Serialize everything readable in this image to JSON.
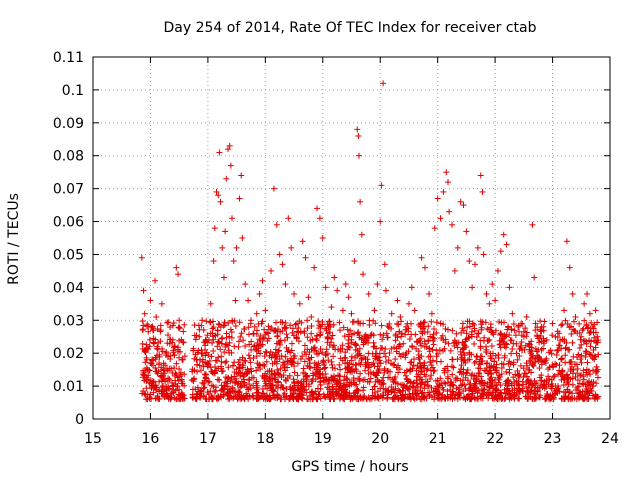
{
  "chart_data": {
    "type": "scatter",
    "title": "Day 254 of 2014, Rate Of TEC Index for receiver ctab",
    "xlabel": "GPS time / hours",
    "ylabel": "ROTI / TECUs",
    "xlim": [
      15,
      24
    ],
    "ylim": [
      0,
      0.11
    ],
    "x_ticks": [
      "15",
      "16",
      "17",
      "18",
      "19",
      "20",
      "21",
      "22",
      "23",
      "24"
    ],
    "y_ticks": [
      "0",
      "0.01",
      "0.02",
      "0.03",
      "0.04",
      "0.05",
      "0.06",
      "0.07",
      "0.08",
      "0.09",
      "0.1",
      "0.11"
    ],
    "grid": true,
    "marker": "+",
    "color": "#e00000",
    "series": [
      {
        "name": "ROTI",
        "points": [
          [
            15.85,
            0.049
          ],
          [
            15.88,
            0.039
          ],
          [
            15.9,
            0.032
          ],
          [
            15.92,
            0.021
          ],
          [
            15.95,
            0.015
          ],
          [
            15.98,
            0.011
          ],
          [
            16.0,
            0.036
          ],
          [
            16.02,
            0.028
          ],
          [
            16.05,
            0.018
          ],
          [
            16.08,
            0.042
          ],
          [
            16.1,
            0.031
          ],
          [
            16.12,
            0.022
          ],
          [
            16.15,
            0.017
          ],
          [
            16.18,
            0.027
          ],
          [
            16.2,
            0.035
          ],
          [
            16.22,
            0.013
          ],
          [
            16.25,
            0.009
          ],
          [
            16.28,
            0.02
          ],
          [
            16.38,
            0.014
          ],
          [
            16.42,
            0.022
          ],
          [
            16.45,
            0.046
          ],
          [
            16.48,
            0.044
          ],
          [
            16.5,
            0.03
          ],
          [
            16.55,
            0.018
          ],
          [
            16.75,
            0.012
          ],
          [
            16.8,
            0.018
          ],
          [
            16.85,
            0.025
          ],
          [
            16.9,
            0.03
          ],
          [
            16.95,
            0.021
          ],
          [
            17.0,
            0.016
          ],
          [
            17.02,
            0.024
          ],
          [
            17.05,
            0.035
          ],
          [
            17.08,
            0.026
          ],
          [
            17.1,
            0.048
          ],
          [
            17.12,
            0.058
          ],
          [
            17.15,
            0.069
          ],
          [
            17.18,
            0.068
          ],
          [
            17.2,
            0.081
          ],
          [
            17.22,
            0.066
          ],
          [
            17.25,
            0.052
          ],
          [
            17.28,
            0.043
          ],
          [
            17.3,
            0.057
          ],
          [
            17.32,
            0.073
          ],
          [
            17.35,
            0.082
          ],
          [
            17.38,
            0.083
          ],
          [
            17.4,
            0.077
          ],
          [
            17.42,
            0.061
          ],
          [
            17.45,
            0.048
          ],
          [
            17.48,
            0.036
          ],
          [
            17.5,
            0.052
          ],
          [
            17.55,
            0.067
          ],
          [
            17.58,
            0.074
          ],
          [
            17.6,
            0.055
          ],
          [
            17.65,
            0.041
          ],
          [
            17.7,
            0.036
          ],
          [
            17.75,
            0.03
          ],
          [
            17.8,
            0.022
          ],
          [
            17.85,
            0.032
          ],
          [
            17.9,
            0.038
          ],
          [
            17.95,
            0.042
          ],
          [
            18.0,
            0.033
          ],
          [
            18.05,
            0.026
          ],
          [
            18.1,
            0.045
          ],
          [
            18.15,
            0.07
          ],
          [
            18.2,
            0.059
          ],
          [
            18.25,
            0.05
          ],
          [
            18.3,
            0.047
          ],
          [
            18.35,
            0.041
          ],
          [
            18.4,
            0.061
          ],
          [
            18.45,
            0.052
          ],
          [
            18.5,
            0.038
          ],
          [
            18.55,
            0.029
          ],
          [
            18.6,
            0.035
          ],
          [
            18.65,
            0.054
          ],
          [
            18.7,
            0.049
          ],
          [
            18.75,
            0.037
          ],
          [
            18.8,
            0.031
          ],
          [
            18.85,
            0.046
          ],
          [
            18.9,
            0.064
          ],
          [
            18.95,
            0.061
          ],
          [
            19.0,
            0.055
          ],
          [
            19.05,
            0.04
          ],
          [
            19.1,
            0.028
          ],
          [
            19.15,
            0.034
          ],
          [
            19.2,
            0.043
          ],
          [
            19.25,
            0.039
          ],
          [
            19.3,
            0.027
          ],
          [
            19.35,
            0.033
          ],
          [
            19.4,
            0.041
          ],
          [
            19.45,
            0.037
          ],
          [
            19.5,
            0.032
          ],
          [
            19.55,
            0.048
          ],
          [
            19.6,
            0.088
          ],
          [
            19.62,
            0.086
          ],
          [
            19.63,
            0.08
          ],
          [
            19.65,
            0.066
          ],
          [
            19.68,
            0.056
          ],
          [
            19.7,
            0.044
          ],
          [
            19.8,
            0.038
          ],
          [
            19.9,
            0.033
          ],
          [
            19.95,
            0.041
          ],
          [
            20.0,
            0.06
          ],
          [
            20.02,
            0.071
          ],
          [
            20.05,
            0.102
          ],
          [
            20.08,
            0.047
          ],
          [
            20.1,
            0.039
          ],
          [
            20.2,
            0.032
          ],
          [
            20.3,
            0.036
          ],
          [
            20.35,
            0.031
          ],
          [
            20.45,
            0.028
          ],
          [
            20.5,
            0.035
          ],
          [
            20.55,
            0.04
          ],
          [
            20.6,
            0.033
          ],
          [
            20.7,
            0.029
          ],
          [
            20.72,
            0.049
          ],
          [
            20.78,
            0.046
          ],
          [
            20.85,
            0.038
          ],
          [
            20.9,
            0.032
          ],
          [
            20.95,
            0.058
          ],
          [
            21.0,
            0.067
          ],
          [
            21.05,
            0.061
          ],
          [
            21.1,
            0.069
          ],
          [
            21.15,
            0.075
          ],
          [
            21.18,
            0.072
          ],
          [
            21.2,
            0.063
          ],
          [
            21.25,
            0.059
          ],
          [
            21.3,
            0.045
          ],
          [
            21.35,
            0.052
          ],
          [
            21.4,
            0.066
          ],
          [
            21.45,
            0.065
          ],
          [
            21.5,
            0.057
          ],
          [
            21.55,
            0.048
          ],
          [
            21.6,
            0.04
          ],
          [
            21.65,
            0.047
          ],
          [
            21.7,
            0.052
          ],
          [
            21.75,
            0.074
          ],
          [
            21.78,
            0.069
          ],
          [
            21.8,
            0.05
          ],
          [
            21.85,
            0.038
          ],
          [
            21.9,
            0.035
          ],
          [
            21.95,
            0.041
          ],
          [
            22.0,
            0.036
          ],
          [
            22.05,
            0.045
          ],
          [
            22.1,
            0.051
          ],
          [
            22.15,
            0.056
          ],
          [
            22.2,
            0.053
          ],
          [
            22.25,
            0.04
          ],
          [
            22.3,
            0.032
          ],
          [
            22.4,
            0.028
          ],
          [
            22.5,
            0.025
          ],
          [
            22.55,
            0.031
          ],
          [
            22.6,
            0.022
          ],
          [
            22.65,
            0.059
          ],
          [
            22.68,
            0.043
          ],
          [
            22.7,
            0.027
          ],
          [
            22.75,
            0.021
          ],
          [
            22.8,
            0.018
          ],
          [
            22.9,
            0.024
          ],
          [
            23.0,
            0.029
          ],
          [
            23.05,
            0.025
          ],
          [
            23.1,
            0.021
          ],
          [
            23.2,
            0.033
          ],
          [
            23.25,
            0.054
          ],
          [
            23.3,
            0.046
          ],
          [
            23.35,
            0.038
          ],
          [
            23.4,
            0.031
          ],
          [
            23.5,
            0.025
          ],
          [
            23.55,
            0.035
          ],
          [
            23.6,
            0.038
          ],
          [
            23.65,
            0.032
          ],
          [
            23.7,
            0.028
          ],
          [
            23.75,
            0.033
          ],
          [
            23.78,
            0.025
          ]
        ],
        "dense_band": {
          "x_range": [
            15.85,
            23.8
          ],
          "y_typical_range": [
            0.006,
            0.03
          ]
        },
        "gaps": [
          [
            16.6,
            16.72
          ]
        ]
      }
    ]
  }
}
